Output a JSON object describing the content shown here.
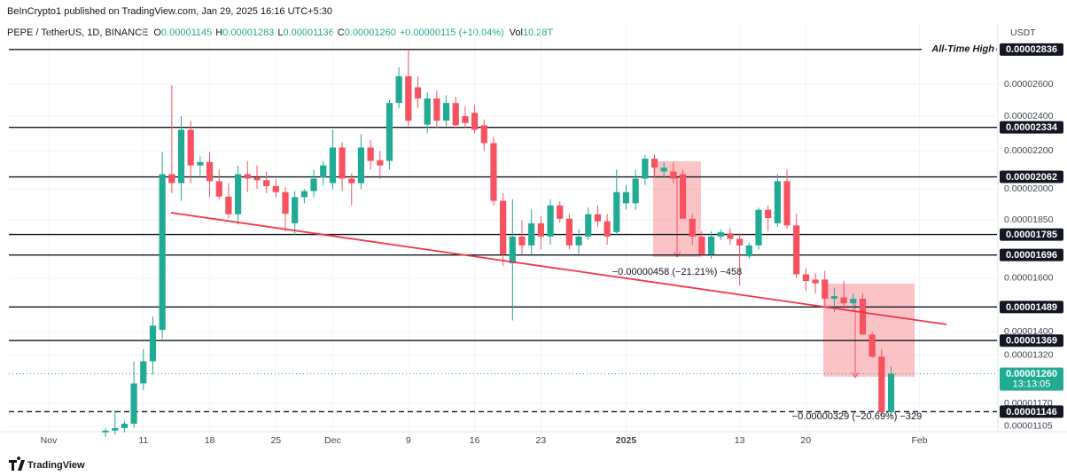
{
  "header": {
    "published": "BeInCrypto1 published on TradingView.com, Jan 29, 2025 16:16 UTC+5:30",
    "symbol": "PEPE / TetherUS, 1D, BINANCE",
    "legend": [
      {
        "key": "O",
        "text": "0.00001145"
      },
      {
        "key": "H",
        "text": "0.00001283"
      },
      {
        "key": "L",
        "text": "0.00001136"
      },
      {
        "key": "C",
        "text": "0.00001260"
      }
    ],
    "change": "+0.00000115 (+10.04%)",
    "volume_key": "Vol",
    "volume": "10.28T",
    "currency": "USDT"
  },
  "chart_data": {
    "type": "candlestick",
    "log_scale": true,
    "grid": true,
    "up_color": "#22ab94",
    "down_color": "#f7525f",
    "categories": [
      "Nov 1",
      "Nov 2",
      "Nov 3",
      "Nov 4",
      "Nov 5",
      "Nov 6",
      "Nov 7",
      "Nov 8",
      "Nov 9",
      "Nov 10",
      "Nov 11",
      "Nov 12",
      "Nov 13",
      "Nov 14",
      "Nov 15",
      "Nov 16",
      "Nov 17",
      "Nov 18",
      "Nov 19",
      "Nov 20",
      "Nov 21",
      "Nov 22",
      "Nov 23",
      "Nov 24",
      "Nov 25",
      "Nov 26",
      "Nov 27",
      "Nov 28",
      "Nov 29",
      "Nov 30",
      "Dec 1",
      "Dec 2",
      "Dec 3",
      "Dec 4",
      "Dec 5",
      "Dec 6",
      "Dec 7",
      "Dec 8",
      "Dec 9",
      "Dec 10",
      "Dec 11",
      "Dec 12",
      "Dec 13",
      "Dec 14",
      "Dec 15",
      "Dec 16",
      "Dec 17",
      "Dec 18",
      "Dec 19",
      "Dec 20",
      "Dec 21",
      "Dec 22",
      "Dec 23",
      "Dec 24",
      "Dec 25",
      "Dec 26",
      "Dec 27",
      "Dec 28",
      "Dec 29",
      "Dec 30",
      "Dec 31",
      "Jan 1",
      "Jan 2",
      "Jan 3",
      "Jan 4",
      "Jan 5",
      "Jan 6",
      "Jan 7",
      "Jan 8",
      "Jan 9",
      "Jan 10",
      "Jan 11",
      "Jan 12",
      "Jan 13",
      "Jan 14",
      "Jan 15",
      "Jan 16",
      "Jan 17",
      "Jan 18",
      "Jan 19",
      "Jan 20",
      "Jan 21",
      "Jan 22",
      "Jan 23",
      "Jan 24",
      "Jan 25",
      "Jan 26",
      "Jan 27",
      "Jan 28",
      "Jan 29",
      "Jan 30",
      "Jan 31",
      "Feb 1",
      "Feb 2",
      "Feb 3",
      "Feb 4",
      "Feb 5",
      "Feb 6",
      "Feb 7",
      "Feb 8"
    ],
    "open": [
      null,
      null,
      null,
      null,
      null,
      null,
      1.088e-05,
      1.093e-05,
      1.1e-05,
      1.112e-05,
      1.23e-05,
      1.3e-05,
      1.406e-05,
      2.076e-05,
      2.03e-05,
      2.32e-05,
      2.122e-05,
      2.14e-05,
      2.04e-05,
      1.963e-05,
      1.878e-05,
      2.076e-05,
      2.06e-05,
      2.045e-05,
      2.015e-05,
      1.985e-05,
      1.836e-05,
      1.96e-05,
      1.99e-05,
      2.06e-05,
      2.03e-05,
      2.219e-05,
      2.053e-05,
      2.03e-05,
      2.219e-05,
      2.15e-05,
      2.146e-05,
      2.481e-05,
      2.652e-05,
      2.58e-05,
      2.35e-05,
      2.509e-05,
      2.373e-05,
      2.481e-05,
      2.4e-05,
      2.42e-05,
      2.346e-05,
      2.244e-05,
      1.942e-05,
      1.661e-05,
      1.776e-05,
      1.737e-05,
      1.836e-05,
      1.776e-05,
      1.92e-05,
      1.857e-05,
      1.737e-05,
      1.776e-05,
      1.878e-05,
      1.845e-05,
      1.796e-05,
      1.93e-05,
      1.93e-05,
      2.053e-05,
      2.158e-05,
      2.09e-05,
      2.09e-05,
      2.076e-05,
      1.857e-05,
      1.776e-05,
      1.699e-05,
      1.776e-05,
      1.79e-05,
      1.766e-05,
      1.69e-05,
      1.737e-05,
      1.899e-05,
      1.836e-05,
      2.04e-05,
      1.826e-05,
      1.616e-05,
      1.595e-05,
      1.595e-05,
      1.52e-05,
      1.525e-05,
      1.503e-05,
      1.52e-05,
      1.39e-05,
      1.315e-05,
      1.145e-05,
      null,
      null,
      null,
      null,
      null,
      null,
      null,
      null,
      null,
      null
    ],
    "high": [
      null,
      null,
      null,
      null,
      null,
      null,
      1.1e-05,
      1.15e-05,
      1.12e-05,
      1.3e-05,
      1.34e-05,
      1.453e-05,
      2.195e-05,
      2.594e-05,
      2.4e-05,
      2.373e-05,
      2.17e-05,
      2.195e-05,
      2.1e-05,
      2.03e-05,
      2.122e-05,
      2.146e-05,
      2.122e-05,
      2.09e-05,
      2.05e-05,
      2.01e-05,
      1.99e-05,
      2e-05,
      2.1e-05,
      2.146e-05,
      2.32e-05,
      2.25e-05,
      2.08e-05,
      2.295e-05,
      2.26e-05,
      2.2e-05,
      2.5e-05,
      2.712e-05,
      2.836e-05,
      2.65e-05,
      2.55e-05,
      2.56e-05,
      2.53e-05,
      2.52e-05,
      2.46e-05,
      2.47e-05,
      2.38e-05,
      2.28e-05,
      1.98e-05,
      1.95e-05,
      1.85e-05,
      1.9e-05,
      1.87e-05,
      1.95e-05,
      1.94e-05,
      1.88e-05,
      1.81e-05,
      1.91e-05,
      1.92e-05,
      1.88e-05,
      2.1e-05,
      2.02e-05,
      2.1e-05,
      2.18e-05,
      2.18e-05,
      2.14e-05,
      2.14e-05,
      2.1e-05,
      1.88e-05,
      1.8e-05,
      1.8e-05,
      1.81e-05,
      1.816e-05,
      1.79e-05,
      1.75e-05,
      1.91e-05,
      1.92e-05,
      2.076e-05,
      2.1e-05,
      1.88e-05,
      1.64e-05,
      1.62e-05,
      1.63e-05,
      1.56e-05,
      1.59e-05,
      1.54e-05,
      1.54e-05,
      1.4e-05,
      1.34e-05,
      1.283e-05,
      null,
      null,
      null,
      null,
      null,
      null,
      null,
      null,
      null,
      null
    ],
    "low": [
      null,
      null,
      null,
      null,
      null,
      null,
      1.076e-05,
      1.082e-05,
      1.088e-05,
      1.1e-05,
      1.21e-05,
      1.257e-05,
      1.375e-05,
      1.98e-05,
      1.942e-05,
      2.03e-05,
      2.07e-05,
      1.96e-05,
      1.95e-05,
      1.86e-05,
      1.83e-05,
      1.985e-05,
      2e-05,
      1.98e-05,
      1.96e-05,
      1.8e-05,
      1.78e-05,
      1.93e-05,
      1.96e-05,
      2.02e-05,
      2e-05,
      1.99e-05,
      1.92e-05,
      2e-05,
      2.1e-05,
      2.05e-05,
      2.1e-05,
      2.45e-05,
      2.34e-05,
      2.45e-05,
      2.3e-05,
      2.33e-05,
      2.34e-05,
      2.33e-05,
      2.33e-05,
      2.3e-05,
      2.2e-05,
      1.92e-05,
      1.65e-05,
      1.44e-05,
      1.7e-05,
      1.7e-05,
      1.72e-05,
      1.74e-05,
      1.84e-05,
      1.72e-05,
      1.7e-05,
      1.76e-05,
      1.82e-05,
      1.74e-05,
      1.78e-05,
      1.9e-05,
      1.9e-05,
      2.02e-05,
      2.06e-05,
      2.06e-05,
      2.03e-05,
      1.86e-05,
      1.74e-05,
      1.69e-05,
      1.68e-05,
      1.76e-05,
      1.74e-05,
      1.571e-05,
      1.68e-05,
      1.72e-05,
      1.8e-05,
      1.82e-05,
      1.81e-05,
      1.6e-05,
      1.55e-05,
      1.54e-05,
      1.49e-05,
      1.47e-05,
      1.48e-05,
      1.47e-05,
      1.39e-05,
      1.31e-05,
      1.135e-05,
      1.136e-05,
      null,
      null,
      null,
      null,
      null,
      null,
      null,
      null,
      null,
      null
    ],
    "close": [
      null,
      null,
      null,
      null,
      null,
      null,
      1.093e-05,
      1.1e-05,
      1.112e-05,
      1.23e-05,
      1.3e-05,
      1.421e-05,
      2.076e-05,
      2.03e-05,
      2.32e-05,
      2.122e-05,
      2.14e-05,
      2.04e-05,
      1.963e-05,
      1.878e-05,
      2.076e-05,
      2.053e-05,
      2.045e-05,
      2.015e-05,
      1.985e-05,
      1.88e-05,
      1.96e-05,
      1.99e-05,
      2.053e-05,
      2.122e-05,
      2.219e-05,
      2.053e-05,
      2.03e-05,
      2.219e-05,
      2.146e-05,
      2.122e-05,
      2.481e-05,
      2.652e-05,
      2.373e-05,
      2.509e-05,
      2.509e-05,
      2.373e-05,
      2.481e-05,
      2.346e-05,
      2.36e-05,
      2.32e-05,
      2.244e-05,
      1.942e-05,
      1.699e-05,
      1.776e-05,
      1.737e-05,
      1.836e-05,
      1.776e-05,
      1.92e-05,
      1.857e-05,
      1.737e-05,
      1.776e-05,
      1.878e-05,
      1.845e-05,
      1.776e-05,
      1.985e-05,
      1.985e-05,
      2.053e-05,
      2.158e-05,
      2.11e-05,
      2.11e-05,
      2.053e-05,
      1.857e-05,
      1.776e-05,
      1.699e-05,
      1.776e-05,
      1.796e-05,
      1.766e-05,
      1.737e-05,
      1.737e-05,
      1.899e-05,
      1.86e-05,
      2.04e-05,
      1.826e-05,
      1.616e-05,
      1.589e-05,
      1.58e-05,
      1.52e-05,
      1.53e-05,
      1.503e-05,
      1.52e-05,
      1.39e-05,
      1.315e-05,
      1.145e-05,
      1.26e-05,
      null,
      null,
      null,
      null,
      null,
      null,
      null,
      null,
      null,
      null
    ],
    "ylim": [
      1.09e-05,
      3.03e-05
    ],
    "yticks": [
      {
        "value": 2.6e-05,
        "label": "0.00002600"
      },
      {
        "value": 2.4e-05,
        "label": "0.00002400"
      },
      {
        "value": 2.2e-05,
        "label": "0.00002200"
      },
      {
        "value": 2e-05,
        "label": "0.00002000"
      },
      {
        "value": 1.85e-05,
        "label": "0.00001850"
      },
      {
        "value": 1.6e-05,
        "label": "0.00001600"
      },
      {
        "value": 1.4e-05,
        "label": "0.00001400"
      },
      {
        "value": 1.32e-05,
        "label": "0.00001320"
      },
      {
        "value": 1.17e-05,
        "label": "0.00001170"
      },
      {
        "value": 1.105e-05,
        "label": "0.00001105"
      }
    ],
    "xticks": [
      {
        "value": "Nov 1",
        "label": "Nov"
      },
      {
        "value": "Nov 11",
        "label": "11"
      },
      {
        "value": "Nov 18",
        "label": "18"
      },
      {
        "value": "Nov 25",
        "label": "25"
      },
      {
        "value": "Dec 1",
        "label": "Dec"
      },
      {
        "value": "Dec 9",
        "label": "9"
      },
      {
        "value": "Dec 16",
        "label": "16"
      },
      {
        "value": "Dec 23",
        "label": "23"
      },
      {
        "value": "Jan 1",
        "label": "2025"
      },
      {
        "value": "Jan 13",
        "label": "13"
      },
      {
        "value": "Jan 20",
        "label": "20"
      },
      {
        "value": "Feb 1",
        "label": "Feb"
      }
    ],
    "levels": [
      {
        "value": 2.836e-05,
        "label": "0.00002836",
        "note": "All-Time High"
      },
      {
        "value": 2.334e-05,
        "label": "0.00002334"
      },
      {
        "value": 2.062e-05,
        "label": "0.00002062"
      },
      {
        "value": 1.785e-05,
        "label": "0.00001785"
      },
      {
        "value": 1.696e-05,
        "label": "0.00001696"
      },
      {
        "value": 1.489e-05,
        "label": "0.00001489"
      },
      {
        "value": 1.369e-05,
        "label": "0.00001369"
      },
      {
        "value": 1.146e-05,
        "label": "0.00001146",
        "dashed": true
      }
    ],
    "last_price": {
      "value": 1.26e-05,
      "label": "0.00001260",
      "countdown": "13:13:05"
    },
    "annotations": [
      "−0.00000458 (−21.21%) −458",
      "−0.00000329 (−20.69%) −329"
    ]
  },
  "footer": {
    "brand": "TradingView"
  }
}
